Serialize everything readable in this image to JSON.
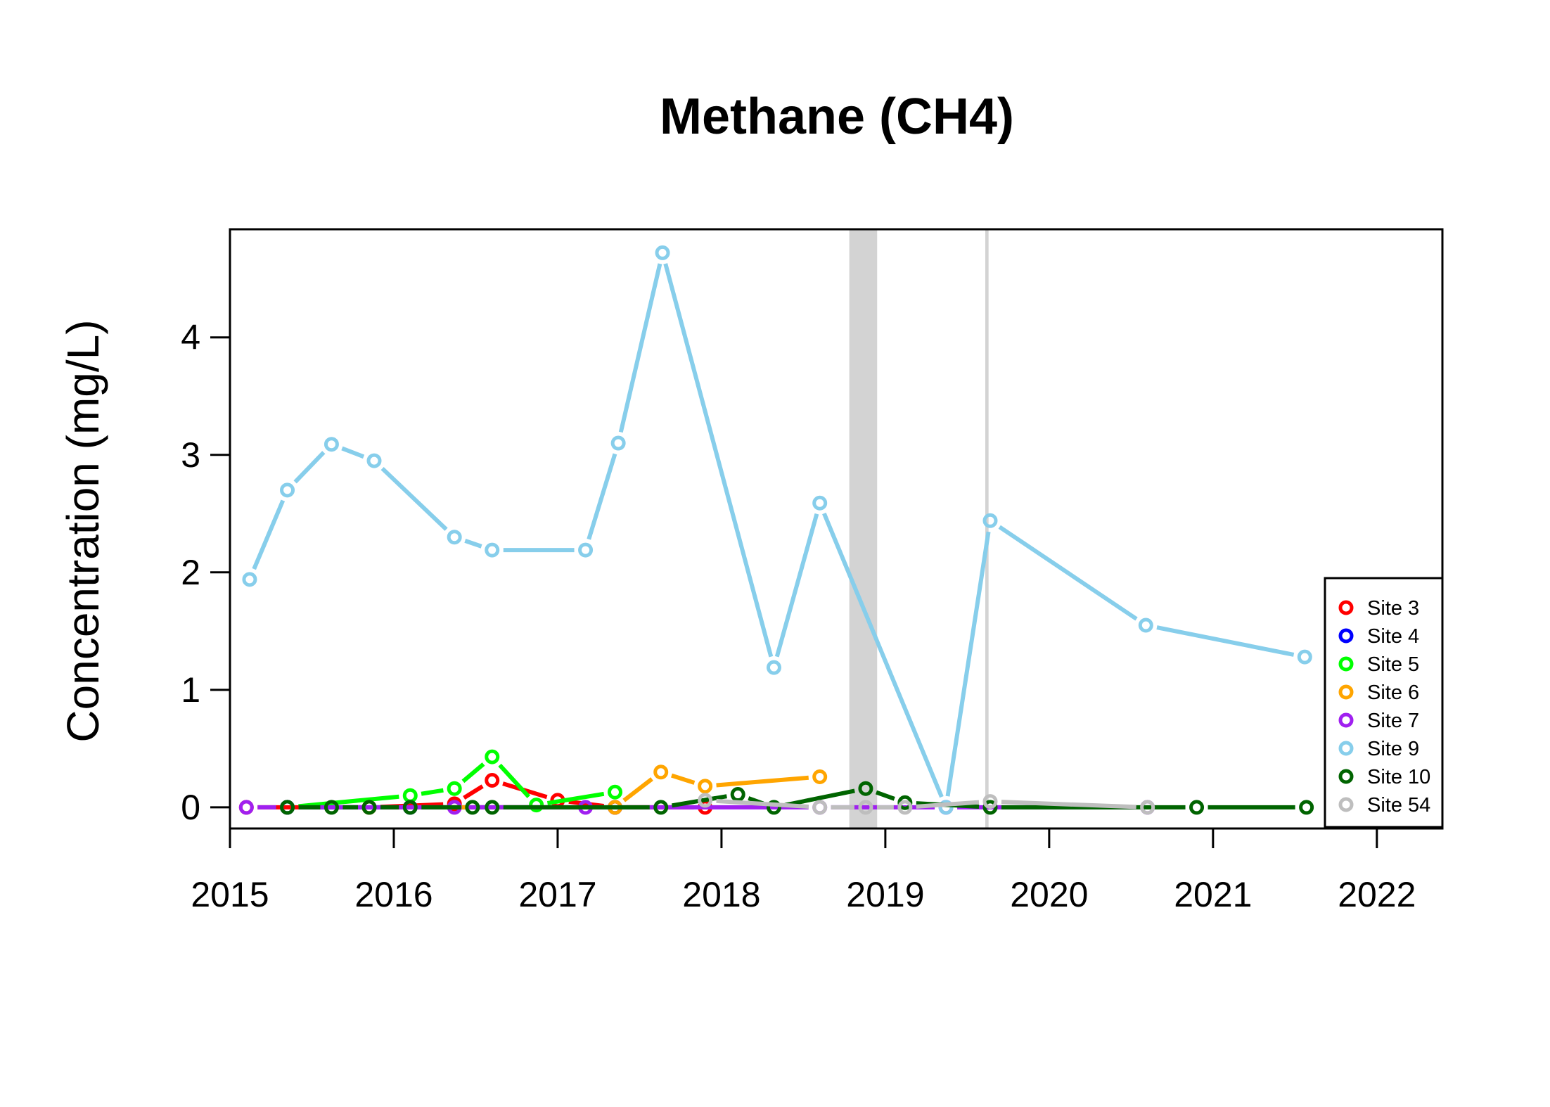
{
  "chart_data": {
    "type": "line",
    "title": "Methane (CH4)",
    "xlabel": "",
    "ylabel": "Concentration (mg/L)",
    "xlim": [
      2015.0,
      2022.4
    ],
    "ylim": [
      -0.18,
      4.92
    ],
    "xticks": [
      2015,
      2016,
      2017,
      2018,
      2019,
      2020,
      2021,
      2022
    ],
    "xtick_labels": [
      "2015",
      "2016",
      "2017",
      "2018",
      "2019",
      "2020",
      "2021",
      "2022"
    ],
    "yticks": [
      0,
      1,
      2,
      3,
      4
    ],
    "ytick_labels": [
      "0",
      "1",
      "2",
      "3",
      "4"
    ],
    "grid": false,
    "legend_position": "bottom-right",
    "shaded_periods": [
      {
        "start": 2018.78,
        "end": 2018.95,
        "color": "#d3d3d3"
      },
      {
        "start": 2019.61,
        "end": 2019.63,
        "color": "#d3d3d3"
      }
    ],
    "series": [
      {
        "name": "Site 3",
        "color": "#ff0000",
        "x": [
          2015.1,
          2015.85,
          2016.37,
          2016.6,
          2017.0,
          2017.35,
          2017.9
        ],
        "y": [
          0.0,
          0.0,
          0.03,
          0.23,
          0.06,
          0.0,
          0.0
        ]
      },
      {
        "name": "Site 4",
        "color": "#0000ff",
        "x": [
          2015.35,
          2016.1,
          2017.35
        ],
        "y": [
          0.0,
          0.0,
          0.0
        ]
      },
      {
        "name": "Site 5",
        "color": "#00ff00",
        "x": [
          2015.35,
          2016.1,
          2016.37,
          2016.6,
          2016.87,
          2017.35
        ],
        "y": [
          0.0,
          0.1,
          0.16,
          0.43,
          0.02,
          0.13
        ]
      },
      {
        "name": "Site 6",
        "color": "#ffa500",
        "x": [
          2015.85,
          2017.35,
          2017.63,
          2017.9,
          2018.6
        ],
        "y": [
          0.0,
          0.0,
          0.3,
          0.18,
          0.26
        ]
      },
      {
        "name": "Site 7",
        "color": "#a020f0",
        "x": [
          2015.1,
          2015.35,
          2016.37,
          2017.17,
          2018.6,
          2019.37,
          2020.6
        ],
        "y": [
          0.0,
          0.0,
          0.0,
          0.0,
          0.0,
          0.0,
          0.0
        ]
      },
      {
        "name": "Site 9",
        "color": "#87ceeb",
        "x": [
          2015.12,
          2015.35,
          2015.62,
          2015.88,
          2016.37,
          2016.6,
          2017.17,
          2017.37,
          2017.64,
          2018.32,
          2018.6,
          2019.37,
          2019.64,
          2020.59,
          2021.56
        ],
        "y": [
          1.94,
          2.7,
          3.09,
          2.95,
          2.3,
          2.19,
          2.19,
          3.1,
          4.72,
          1.19,
          2.59,
          0.0,
          2.44,
          1.55,
          1.28
        ]
      },
      {
        "name": "Site 10",
        "color": "#006400",
        "x": [
          2015.35,
          2015.62,
          2015.85,
          2016.1,
          2016.48,
          2016.6,
          2017.63,
          2018.1,
          2018.32,
          2018.88,
          2019.12,
          2019.64,
          2020.9,
          2021.57
        ],
        "y": [
          0.0,
          0.0,
          0.0,
          0.0,
          0.0,
          0.0,
          0.0,
          0.11,
          0.0,
          0.16,
          0.04,
          0.0,
          0.0,
          0.0
        ]
      },
      {
        "name": "Site 54",
        "color": "#bebebe",
        "x": [
          2017.9,
          2018.6,
          2018.88,
          2019.12,
          2019.64,
          2020.6
        ],
        "y": [
          0.06,
          0.0,
          0.0,
          0.0,
          0.05,
          0.0
        ]
      }
    ]
  }
}
